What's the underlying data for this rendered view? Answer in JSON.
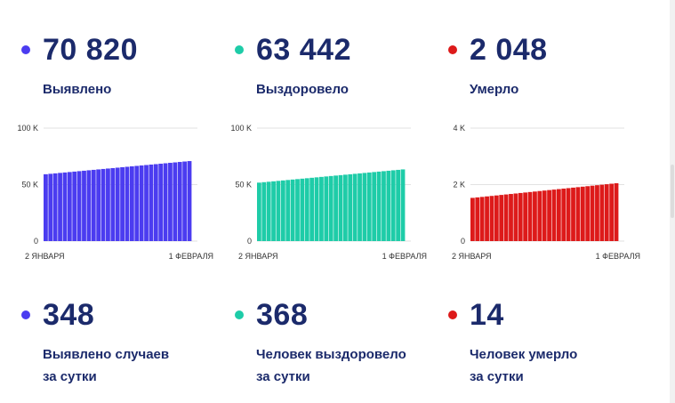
{
  "colors": {
    "text": "#1b2a6b",
    "detected": "#4b3cf0",
    "recovered": "#1ecca8",
    "died": "#dd1a1a"
  },
  "totals": [
    {
      "value": "70 820",
      "label": "Выявлено",
      "color": "#4b3cf0"
    },
    {
      "value": "63 442",
      "label": "Выздоровело",
      "color": "#1ecca8"
    },
    {
      "value": "2 048",
      "label": "Умерло",
      "color": "#dd1a1a"
    }
  ],
  "daily": [
    {
      "value": "348",
      "label_line1": "Выявлено случаев",
      "label_line2": "за сутки",
      "color": "#4b3cf0"
    },
    {
      "value": "368",
      "label_line1": "Человек выздоровело",
      "label_line2": "за сутки",
      "color": "#1ecca8"
    },
    {
      "value": "14",
      "label_line1": "Человек умерло",
      "label_line2": "за сутки",
      "color": "#dd1a1a"
    }
  ],
  "chart_data": [
    {
      "type": "bar",
      "color": "#4b3cf0",
      "x_start_label": "2 ЯНВАРЯ",
      "x_end_label": "1 ФЕВРАЛЯ",
      "y_ticks": [
        {
          "value": 0,
          "label": "0"
        },
        {
          "value": 50000,
          "label": "50 K"
        },
        {
          "value": 100000,
          "label": "100 K"
        }
      ],
      "ylim": [
        0,
        100000
      ],
      "values": [
        59170,
        59558,
        59947,
        60335,
        60724,
        61112,
        61500,
        61889,
        62277,
        62666,
        63054,
        63442,
        63831,
        64219,
        64608,
        64996,
        65384,
        65773,
        66161,
        66550,
        66938,
        67326,
        67715,
        68103,
        68492,
        68880,
        69268,
        69657,
        70045,
        70434,
        70820
      ]
    },
    {
      "type": "bar",
      "color": "#1ecca8",
      "x_start_label": "2 ЯНВАРЯ",
      "x_end_label": "1 ФЕВРАЛЯ",
      "y_ticks": [
        {
          "value": 0,
          "label": "0"
        },
        {
          "value": 50000,
          "label": "50 K"
        },
        {
          "value": 100000,
          "label": "100 K"
        }
      ],
      "ylim": [
        0,
        100000
      ],
      "values": [
        51740,
        52130,
        52520,
        52910,
        53300,
        53690,
        54080,
        54470,
        54860,
        55250,
        55640,
        56030,
        56420,
        56810,
        57200,
        57591,
        57981,
        58371,
        58761,
        59151,
        59541,
        59931,
        60321,
        60711,
        61101,
        61491,
        61881,
        62271,
        62661,
        63051,
        63442
      ]
    },
    {
      "type": "bar",
      "color": "#dd1a1a",
      "x_start_label": "2 ЯНВАРЯ",
      "x_end_label": "1 ФЕВРАЛЯ",
      "y_ticks": [
        {
          "value": 0,
          "label": "0"
        },
        {
          "value": 2000,
          "label": "2 K"
        },
        {
          "value": 4000,
          "label": "4 K"
        }
      ],
      "ylim": [
        0,
        4000
      ],
      "values": [
        1530,
        1547,
        1564,
        1582,
        1599,
        1616,
        1634,
        1651,
        1668,
        1685,
        1703,
        1720,
        1737,
        1754,
        1772,
        1789,
        1806,
        1823,
        1841,
        1858,
        1875,
        1893,
        1910,
        1927,
        1944,
        1962,
        1979,
        1996,
        2013,
        2031,
        2048
      ]
    }
  ]
}
